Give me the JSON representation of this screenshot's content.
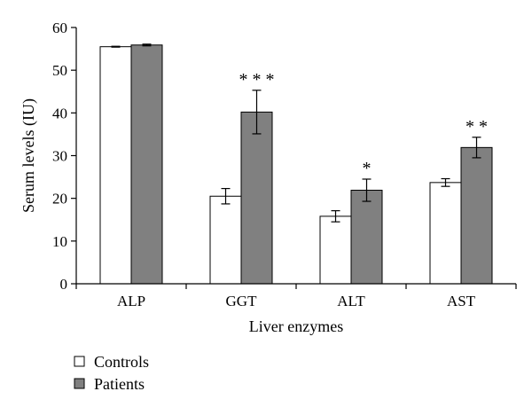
{
  "chart_data": {
    "type": "bar",
    "xlabel": "Liver enzymes",
    "ylabel": "Serum levels (IU)",
    "ylim": [
      0,
      60
    ],
    "yticks": [
      0,
      10,
      20,
      30,
      40,
      50,
      60
    ],
    "categories": [
      "ALP",
      "GGT",
      "ALT",
      "AST"
    ],
    "series": [
      {
        "name": "Controls",
        "color": "#ffffff",
        "values": [
          55.5,
          20.5,
          15.8,
          23.7
        ],
        "errors": [
          0.1,
          1.8,
          1.3,
          0.9
        ]
      },
      {
        "name": "Patients",
        "color": "#808080",
        "values": [
          55.9,
          40.2,
          21.9,
          31.9
        ],
        "errors": [
          0.2,
          5.1,
          2.6,
          2.4
        ]
      }
    ],
    "annotations": [
      "",
      "* * *",
      "*",
      "* *"
    ],
    "legend_position": "bottom-left",
    "grid": false
  }
}
